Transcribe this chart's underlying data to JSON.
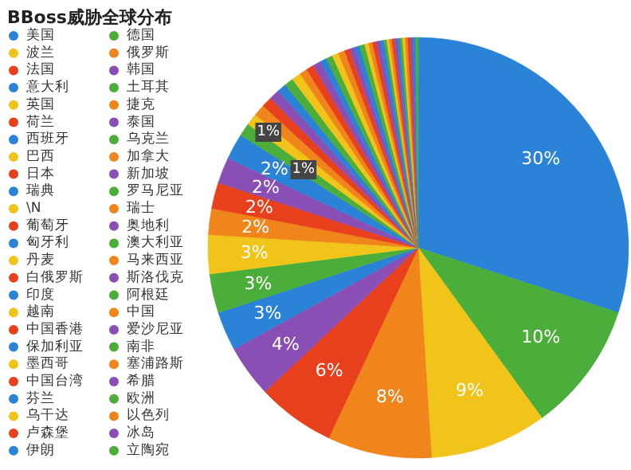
{
  "chart_data": {
    "type": "pie",
    "title": "BBoss威胁全球分布",
    "categories": [
      "美国",
      "德国",
      "波兰",
      "俄罗斯",
      "法国",
      "韩国",
      "意大利",
      "土耳其",
      "英国",
      "捷克",
      "荷兰",
      "泰国",
      "西班牙",
      "乌克兰",
      "巴西",
      "加拿大",
      "日本",
      "新加坡",
      "瑞典",
      "罗马尼亚",
      "\\N",
      "瑞士",
      "葡萄牙",
      "奥地利",
      "匈牙利",
      "澳大利亚",
      "丹麦",
      "马来西亚",
      "白俄罗斯",
      "斯洛伐克",
      "印度",
      "阿根廷",
      "越南",
      "中国",
      "中国香港",
      "爱沙尼亚",
      "保加利亚",
      "南非",
      "墨西哥",
      "塞浦路斯",
      "中国台湾",
      "希腊",
      "芬兰",
      "欧洲",
      "乌干达",
      "以色列",
      "卢森堡",
      "冰岛",
      "伊朗",
      "立陶宛"
    ],
    "values": [
      30,
      10,
      9,
      8,
      6,
      4,
      3,
      3,
      3,
      2,
      2,
      2,
      2,
      1.0,
      0.9,
      0.9,
      0.8,
      0.8,
      0.7,
      0.7,
      0.7,
      0.6,
      0.6,
      0.6,
      0.5,
      0.5,
      0.5,
      0.5,
      0.4,
      0.4,
      0.4,
      0.4,
      0.3,
      0.3,
      0.3,
      0.3,
      0.3,
      0.2,
      0.2,
      0.2,
      0.2,
      0.2,
      0.2,
      0.2,
      0.2,
      0.2,
      0.2,
      0.2,
      0.2,
      0.2
    ],
    "value_labels": [
      "30%",
      "10%",
      "9%",
      "8%",
      "6%",
      "4%",
      "3%",
      "3%",
      "3%",
      "2%",
      "2%",
      "2%",
      "2%",
      "1%",
      "1%",
      null,
      null,
      null,
      null,
      null,
      null,
      null,
      null,
      null,
      null,
      null,
      null,
      null,
      null,
      null,
      null,
      null,
      null,
      null,
      null,
      null,
      null,
      null,
      null,
      null,
      null,
      null,
      null,
      null,
      null,
      null,
      null,
      null,
      null,
      null
    ],
    "colors": [
      "#2b83d8",
      "#4cae3a",
      "#f0c419",
      "#f0851c",
      "#e8401c",
      "#8a4fb5",
      "#2b83d8",
      "#4cae3a",
      "#f0c419",
      "#f0851c",
      "#e8401c",
      "#8a4fb5",
      "#2b83d8",
      "#4cae3a",
      "#f0c419",
      "#f0851c",
      "#e8401c",
      "#8a4fb5",
      "#2b83d8",
      "#4cae3a",
      "#f0c419",
      "#f0851c",
      "#e8401c",
      "#8a4fb5",
      "#2b83d8",
      "#4cae3a",
      "#f0c419",
      "#f0851c",
      "#e8401c",
      "#8a4fb5",
      "#2b83d8",
      "#4cae3a",
      "#f0c419",
      "#f0851c",
      "#e8401c",
      "#8a4fb5",
      "#2b83d8",
      "#4cae3a",
      "#f0c419",
      "#f0851c",
      "#e8401c",
      "#8a4fb5",
      "#2b83d8",
      "#4cae3a",
      "#f0c419",
      "#f0851c",
      "#e8401c",
      "#8a4fb5",
      "#2b83d8",
      "#4cae3a"
    ],
    "legend": "left"
  }
}
